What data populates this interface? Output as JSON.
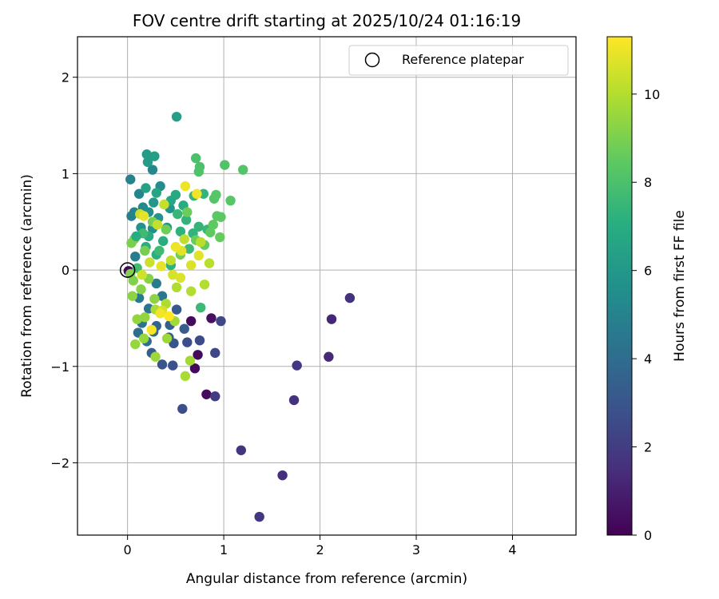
{
  "chart_data": {
    "type": "scatter",
    "title": "FOV centre drift starting at 2025/10/24 01:16:19",
    "xlabel": "Angular distance from reference (arcmin)",
    "ylabel": "Rotation from reference (arcmin)",
    "xlim": [
      -0.52,
      4.66
    ],
    "ylim": [
      -2.75,
      2.42
    ],
    "xticks": [
      "0",
      "1",
      "2",
      "3",
      "4"
    ],
    "yticks": [
      "−2",
      "−1",
      "0",
      "1",
      "2"
    ],
    "grid": true,
    "legend": {
      "position": "top-right",
      "entries": [
        "Reference platepar"
      ]
    },
    "reference_point": {
      "x": 0,
      "y": 0
    },
    "colorbar": {
      "label": "Hours from first FF file",
      "range": [
        0,
        11.3
      ],
      "ticks": [
        "0",
        "2",
        "4",
        "6",
        "8",
        "10"
      ],
      "colormap": "viridis",
      "colors": [
        "#440154",
        "#472d7b",
        "#3b528b",
        "#2c728e",
        "#21918c",
        "#28ae80",
        "#5ec962",
        "#addc30",
        "#fde725"
      ]
    },
    "points": [
      [
        0.01,
        -0.01,
        0.2
      ],
      [
        0.66,
        -0.53,
        0.3
      ],
      [
        0.7,
        -1.02,
        0.3
      ],
      [
        0.73,
        -0.88,
        0.3
      ],
      [
        0.82,
        -1.29,
        0.3
      ],
      [
        0.87,
        -0.5,
        0.5
      ],
      [
        2.12,
        -0.51,
        1.2
      ],
      [
        2.31,
        -0.29,
        1.6
      ],
      [
        2.09,
        -0.9,
        1.3
      ],
      [
        1.73,
        -1.35,
        1.6
      ],
      [
        1.76,
        -0.99,
        1.8
      ],
      [
        1.18,
        -1.87,
        1.7
      ],
      [
        1.61,
        -2.13,
        1.5
      ],
      [
        1.37,
        -2.56,
        1.8
      ],
      [
        0.91,
        -1.31,
        2.0
      ],
      [
        0.91,
        -0.86,
        2.4
      ],
      [
        0.97,
        -0.53,
        2.4
      ],
      [
        0.75,
        -0.73,
        2.6
      ],
      [
        0.62,
        -0.75,
        2.6
      ],
      [
        0.57,
        -1.44,
        2.7
      ],
      [
        0.47,
        -0.99,
        2.8
      ],
      [
        0.36,
        -0.98,
        3.0
      ],
      [
        0.48,
        -0.76,
        3.0
      ],
      [
        0.43,
        -0.7,
        3.2
      ],
      [
        0.25,
        -0.86,
        3.3
      ],
      [
        0.59,
        -0.61,
        3.3
      ],
      [
        0.44,
        -0.57,
        3.4
      ],
      [
        0.3,
        -0.58,
        3.6
      ],
      [
        0.51,
        -0.41,
        3.2
      ],
      [
        0.27,
        -0.64,
        3.8
      ],
      [
        0.2,
        -0.74,
        4.0
      ],
      [
        0.11,
        -0.65,
        4.1
      ],
      [
        0.15,
        -0.55,
        4.3
      ],
      [
        0.22,
        -0.4,
        4.4
      ],
      [
        0.36,
        -0.27,
        4.5
      ],
      [
        0.12,
        -0.29,
        4.6
      ],
      [
        0.3,
        -0.14,
        4.7
      ],
      [
        0.08,
        0.14,
        4.7
      ],
      [
        0.04,
        0.56,
        4.8
      ],
      [
        0.03,
        0.94,
        5.0
      ],
      [
        0.12,
        0.79,
        5.1
      ],
      [
        0.26,
        1.04,
        5.2
      ],
      [
        0.07,
        0.6,
        5.0
      ],
      [
        0.16,
        0.65,
        5.3
      ],
      [
        0.34,
        0.87,
        5.4
      ],
      [
        0.22,
        0.6,
        5.5
      ],
      [
        0.26,
        0.43,
        5.6
      ],
      [
        0.14,
        0.44,
        5.7
      ],
      [
        0.32,
        0.54,
        5.8
      ],
      [
        0.44,
        0.64,
        5.9
      ],
      [
        0.41,
        0.44,
        6.0
      ],
      [
        0.21,
        1.12,
        6.2
      ],
      [
        0.2,
        1.2,
        6.2
      ],
      [
        0.28,
        1.18,
        6.3
      ],
      [
        0.51,
        1.59,
        6.4
      ],
      [
        0.19,
        0.85,
        6.5
      ],
      [
        0.3,
        0.8,
        6.6
      ],
      [
        0.45,
        0.72,
        6.7
      ],
      [
        0.5,
        0.78,
        6.8
      ],
      [
        0.58,
        0.67,
        6.9
      ],
      [
        0.22,
        0.35,
        6.9
      ],
      [
        0.37,
        0.3,
        7.0
      ],
      [
        0.19,
        0.24,
        7.1
      ],
      [
        0.3,
        0.16,
        7.1
      ],
      [
        0.45,
        0.05,
        7.2
      ],
      [
        0.55,
        0.4,
        7.2
      ],
      [
        0.61,
        0.52,
        7.3
      ],
      [
        0.68,
        0.38,
        7.3
      ],
      [
        0.74,
        0.45,
        7.4
      ],
      [
        0.79,
        0.79,
        7.4
      ],
      [
        0.69,
        0.77,
        7.5
      ],
      [
        0.83,
        0.42,
        7.5
      ],
      [
        0.64,
        0.22,
        7.6
      ],
      [
        0.76,
        -0.39,
        7.6
      ],
      [
        0.33,
        0.2,
        7.7
      ],
      [
        0.16,
        0.38,
        7.7
      ],
      [
        0.1,
        0.02,
        7.8
      ],
      [
        0.71,
        1.16,
        8.0
      ],
      [
        0.75,
        1.07,
        8.0
      ],
      [
        0.74,
        1.02,
        8.1
      ],
      [
        1.01,
        1.09,
        8.1
      ],
      [
        1.2,
        1.04,
        8.2
      ],
      [
        0.9,
        0.74,
        8.2
      ],
      [
        0.92,
        0.78,
        8.3
      ],
      [
        1.07,
        0.72,
        8.3
      ],
      [
        0.93,
        0.56,
        8.4
      ],
      [
        0.97,
        0.55,
        8.4
      ],
      [
        0.89,
        0.47,
        8.5
      ],
      [
        0.86,
        0.39,
        8.5
      ],
      [
        0.96,
        0.34,
        8.6
      ],
      [
        0.8,
        0.26,
        8.6
      ],
      [
        0.71,
        0.31,
        8.7
      ],
      [
        0.62,
        0.6,
        8.7
      ],
      [
        0.4,
        0.42,
        8.8
      ],
      [
        0.55,
        0.16,
        8.8
      ],
      [
        0.26,
        0.5,
        8.9
      ],
      [
        0.18,
        0.2,
        8.9
      ],
      [
        0.07,
        0.32,
        9.0
      ],
      [
        0.04,
        0.28,
        9.0
      ],
      [
        0.03,
        -0.04,
        9.1
      ],
      [
        0.06,
        -0.11,
        9.1
      ],
      [
        0.14,
        -0.2,
        9.2
      ],
      [
        0.22,
        -0.09,
        9.2
      ],
      [
        0.28,
        -0.3,
        9.3
      ],
      [
        0.05,
        -0.27,
        9.3
      ],
      [
        0.1,
        -0.51,
        9.4
      ],
      [
        0.18,
        -0.49,
        9.4
      ],
      [
        0.08,
        -0.77,
        9.5
      ],
      [
        0.17,
        -0.71,
        9.5
      ],
      [
        0.29,
        -0.9,
        9.6
      ],
      [
        0.41,
        -0.71,
        9.6
      ],
      [
        0.49,
        -0.53,
        9.7
      ],
      [
        0.65,
        -0.94,
        9.7
      ],
      [
        0.6,
        -1.1,
        9.8
      ],
      [
        0.29,
        -0.41,
        9.8
      ],
      [
        0.4,
        -0.35,
        9.9
      ],
      [
        0.51,
        -0.18,
        9.9
      ],
      [
        0.66,
        -0.22,
        10.0
      ],
      [
        0.8,
        -0.15,
        10.0
      ],
      [
        0.85,
        0.07,
        10.1
      ],
      [
        0.76,
        0.29,
        10.1
      ],
      [
        0.59,
        0.32,
        10.2
      ],
      [
        0.45,
        0.1,
        10.2
      ],
      [
        0.38,
        0.68,
        10.3
      ],
      [
        0.31,
        0.47,
        10.3
      ],
      [
        0.13,
        0.58,
        10.4
      ],
      [
        0.23,
        0.08,
        10.4
      ],
      [
        0.15,
        -0.05,
        10.5
      ],
      [
        0.36,
        -0.42,
        10.6
      ],
      [
        0.47,
        -0.05,
        10.6
      ],
      [
        0.55,
        -0.08,
        10.7
      ],
      [
        0.66,
        0.05,
        10.7
      ],
      [
        0.74,
        0.15,
        10.8
      ],
      [
        0.56,
        0.2,
        10.8
      ],
      [
        0.35,
        0.04,
        10.9
      ],
      [
        0.17,
        0.56,
        10.9
      ],
      [
        0.5,
        0.24,
        11.0
      ],
      [
        0.6,
        0.87,
        11.0
      ],
      [
        0.72,
        0.79,
        11.1
      ],
      [
        0.34,
        -0.45,
        11.1
      ],
      [
        0.25,
        -0.62,
        11.2
      ],
      [
        0.43,
        -0.48,
        11.3
      ],
      [
        0.09,
        0.35,
        7.0
      ],
      [
        0.27,
        0.7,
        6.0
      ],
      [
        0.52,
        0.58,
        7.5
      ]
    ]
  }
}
